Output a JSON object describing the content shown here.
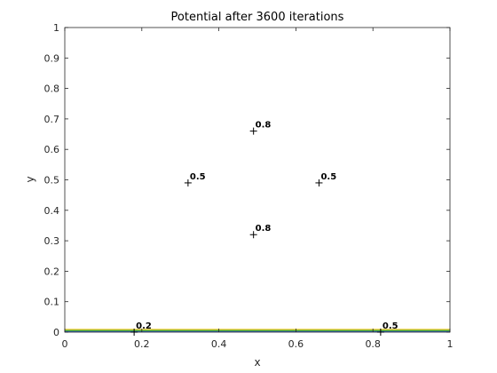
{
  "chart_data": {
    "type": "contour",
    "title": "Potential after 3600 iterations",
    "xlabel": "x",
    "ylabel": "y",
    "xlim": [
      0,
      1
    ],
    "ylim": [
      0,
      1
    ],
    "xticks": [
      "0",
      "0.2",
      "0.4",
      "0.6",
      "0.8",
      "1"
    ],
    "yticks": [
      "0",
      "0.1",
      "0.2",
      "0.3",
      "0.4",
      "0.5",
      "0.6",
      "0.7",
      "0.8",
      "0.9",
      "1"
    ],
    "grid": false,
    "legend": "none",
    "contour_lines": [
      {
        "y": 0.002,
        "color": "#3a5fcd"
      },
      {
        "y": 0.005,
        "color": "#2ca02c"
      },
      {
        "y": 0.009,
        "color": "#e8c00f"
      }
    ],
    "labeled_points": [
      {
        "x": 0.49,
        "y": 0.66,
        "label": "0.8"
      },
      {
        "x": 0.32,
        "y": 0.49,
        "label": "0.5"
      },
      {
        "x": 0.66,
        "y": 0.49,
        "label": "0.5"
      },
      {
        "x": 0.49,
        "y": 0.32,
        "label": "0.8"
      },
      {
        "x": 0.18,
        "y": 0.0,
        "label": "0.2"
      },
      {
        "x": 0.82,
        "y": 0.0,
        "label": "0.5"
      }
    ]
  }
}
